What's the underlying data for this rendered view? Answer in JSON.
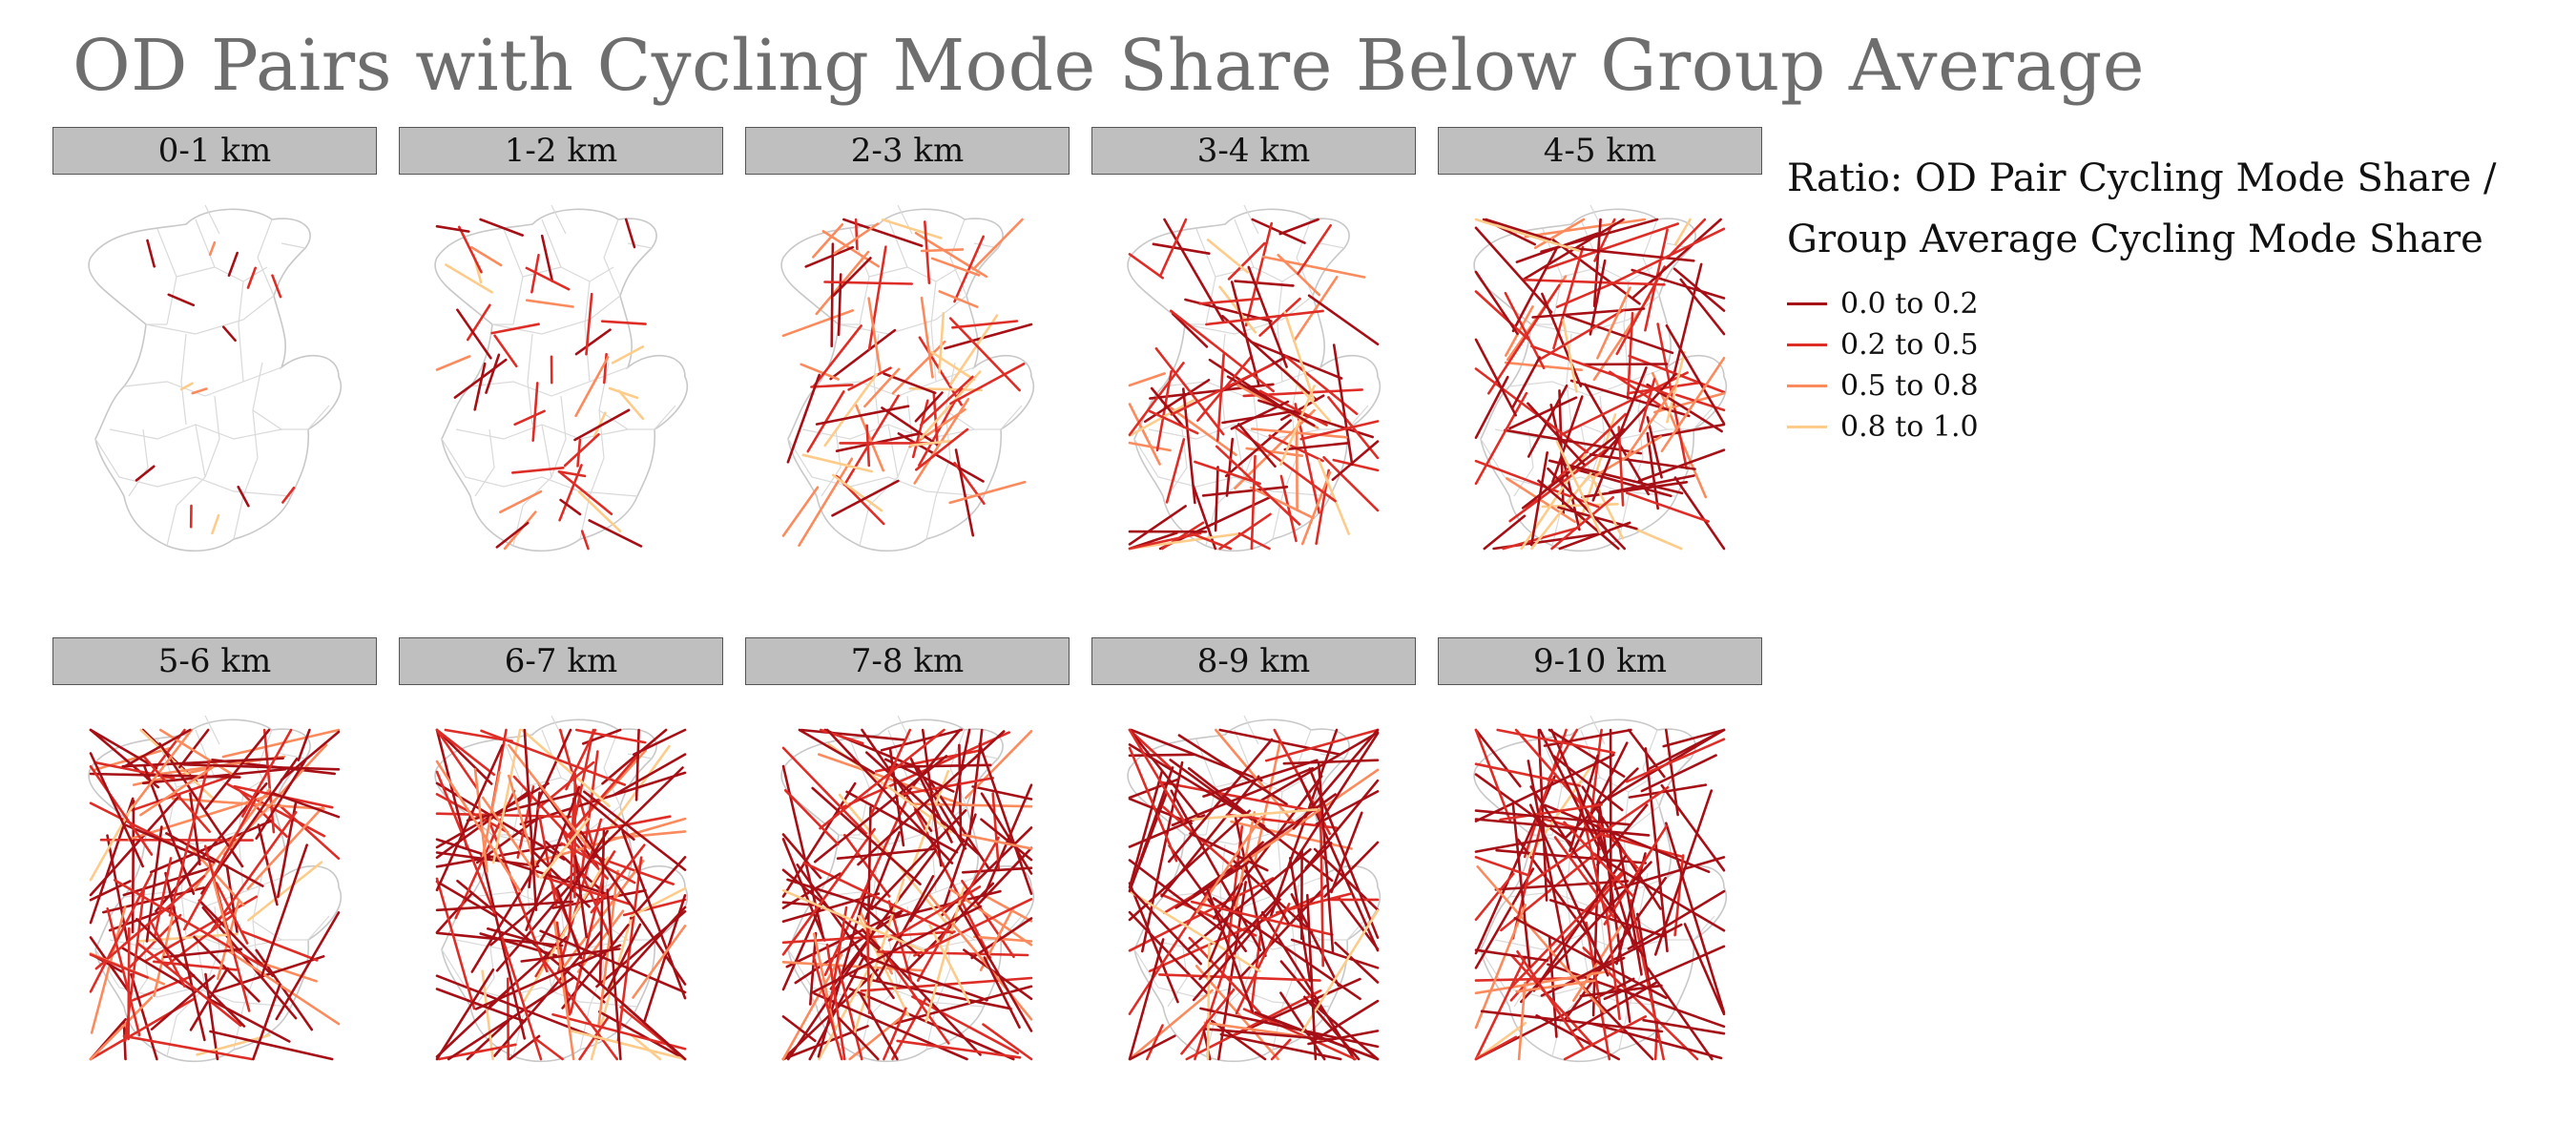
{
  "title": "OD Pairs with Cycling Mode Share Below Group Average",
  "legend": {
    "title_line1": "Ratio: OD Pair Cycling Mode Share /",
    "title_line2": "Group Average Cycling Mode Share",
    "items": [
      {
        "label": "0.0 to 0.2",
        "color": "#a50f15"
      },
      {
        "label": "0.2 to 0.5",
        "color": "#de2d26"
      },
      {
        "label": "0.5 to 0.8",
        "color": "#fb8a5c"
      },
      {
        "label": "0.8 to 1.0",
        "color": "#fdcc8a"
      }
    ]
  },
  "panels": [
    {
      "label": "0-1 km"
    },
    {
      "label": "1-2 km"
    },
    {
      "label": "2-3 km"
    },
    {
      "label": "3-4 km"
    },
    {
      "label": "4-5 km"
    },
    {
      "label": "5-6 km"
    },
    {
      "label": "6-7 km"
    },
    {
      "label": "7-8 km"
    },
    {
      "label": "8-9 km"
    },
    {
      "label": "9-10 km"
    }
  ]
}
